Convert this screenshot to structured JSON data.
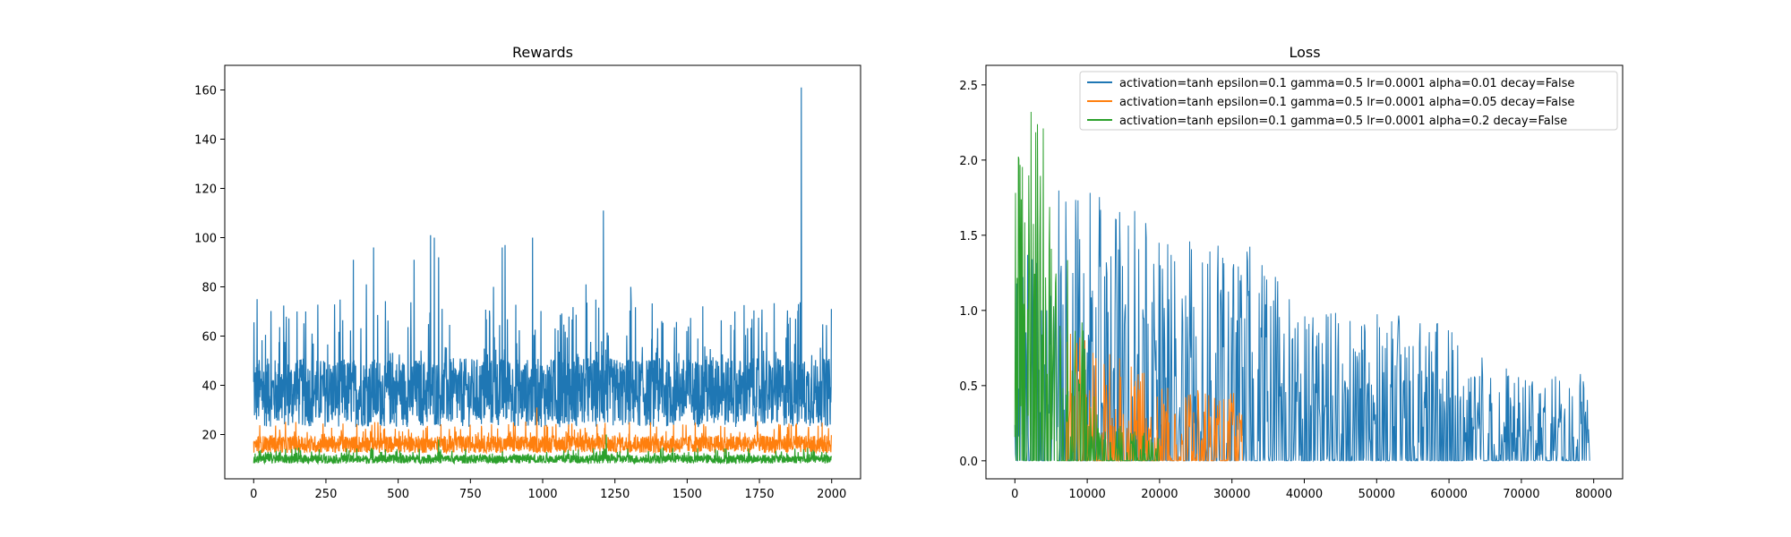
{
  "chart_data": [
    {
      "type": "line",
      "title": "Rewards",
      "xlabel": "",
      "ylabel": "",
      "xlim": [
        -100,
        2100
      ],
      "ylim": [
        2,
        170
      ],
      "xticks": [
        0,
        250,
        500,
        750,
        1000,
        1250,
        1500,
        1750,
        2000
      ],
      "yticks": [
        20,
        40,
        60,
        80,
        100,
        120,
        140,
        160
      ],
      "grid": false,
      "n_points": 2000,
      "series": [
        {
          "color": "#1f77b4",
          "baseline_range": [
            22,
            62
          ],
          "typical_mean": 37,
          "spikes": [
            {
              "x": 12,
              "y": 75
            },
            {
              "x": 150,
              "y": 70
            },
            {
              "x": 180,
              "y": 70
            },
            {
              "x": 345,
              "y": 91
            },
            {
              "x": 390,
              "y": 81
            },
            {
              "x": 415,
              "y": 96
            },
            {
              "x": 555,
              "y": 91
            },
            {
              "x": 612,
              "y": 101
            },
            {
              "x": 625,
              "y": 100
            },
            {
              "x": 640,
              "y": 92
            },
            {
              "x": 830,
              "y": 80
            },
            {
              "x": 860,
              "y": 96
            },
            {
              "x": 870,
              "y": 97
            },
            {
              "x": 965,
              "y": 100
            },
            {
              "x": 1150,
              "y": 81
            },
            {
              "x": 1210,
              "y": 111
            },
            {
              "x": 1305,
              "y": 80
            },
            {
              "x": 1665,
              "y": 70
            },
            {
              "x": 1850,
              "y": 65
            },
            {
              "x": 1875,
              "y": 67
            },
            {
              "x": 1885,
              "y": 73
            },
            {
              "x": 1895,
              "y": 161
            }
          ]
        },
        {
          "color": "#ff7f0e",
          "baseline_range": [
            12,
            22
          ],
          "typical_mean": 16,
          "spikes": [
            {
              "x": 980,
              "y": 31
            },
            {
              "x": 430,
              "y": 25
            },
            {
              "x": 1300,
              "y": 25
            },
            {
              "x": 1860,
              "y": 24
            }
          ]
        },
        {
          "color": "#2ca02c",
          "baseline_range": [
            8,
            13
          ],
          "typical_mean": 10,
          "spikes": [
            {
              "x": 1220,
              "y": 20
            },
            {
              "x": 640,
              "y": 18
            }
          ]
        }
      ]
    },
    {
      "type": "line",
      "title": "Loss",
      "xlabel": "",
      "ylabel": "",
      "xlim": [
        -4000,
        84000
      ],
      "ylim": [
        -0.12,
        2.63
      ],
      "xticks": [
        0,
        10000,
        20000,
        30000,
        40000,
        50000,
        60000,
        70000,
        80000
      ],
      "yticks": [
        0.0,
        0.5,
        1.0,
        1.5,
        2.0,
        2.5
      ],
      "grid": false,
      "legend": {
        "position": "upper right",
        "entries": [
          "activation=tanh epsilon=0.1 gamma=0.5 lr=0.0001 alpha=0.01 decay=False",
          "activation=tanh epsilon=0.1 gamma=0.5 lr=0.0001 alpha=0.05 decay=False",
          "activation=tanh epsilon=0.1 gamma=0.5 lr=0.0001 alpha=0.2 decay=False"
        ]
      },
      "series": [
        {
          "color": "#1f77b4",
          "x_end": 79500,
          "envelope": [
            {
              "x": 0,
              "y": 1.5
            },
            {
              "x": 5000,
              "y": 1.85
            },
            {
              "x": 10000,
              "y": 1.85
            },
            {
              "x": 20000,
              "y": 1.6
            },
            {
              "x": 30000,
              "y": 1.45
            },
            {
              "x": 32000,
              "y": 1.45
            },
            {
              "x": 40000,
              "y": 1.05
            },
            {
              "x": 50000,
              "y": 1.0
            },
            {
              "x": 60000,
              "y": 0.9
            },
            {
              "x": 70000,
              "y": 0.55
            },
            {
              "x": 79500,
              "y": 0.6
            }
          ]
        },
        {
          "color": "#ff7f0e",
          "x_end": 31500,
          "envelope": [
            {
              "x": 7000,
              "y": 0.9
            },
            {
              "x": 10000,
              "y": 0.8
            },
            {
              "x": 15000,
              "y": 0.7
            },
            {
              "x": 20000,
              "y": 0.5
            },
            {
              "x": 25000,
              "y": 0.47
            },
            {
              "x": 31500,
              "y": 0.45
            }
          ]
        },
        {
          "color": "#2ca02c",
          "x_end": 20000,
          "envelope": [
            {
              "x": 0,
              "y": 1.9
            },
            {
              "x": 2000,
              "y": 2.5
            },
            {
              "x": 4000,
              "y": 2.4
            },
            {
              "x": 5000,
              "y": 2.0
            },
            {
              "x": 7000,
              "y": 1.5
            },
            {
              "x": 9000,
              "y": 1.0
            },
            {
              "x": 10000,
              "y": 0.8
            },
            {
              "x": 12000,
              "y": 0.25
            },
            {
              "x": 20000,
              "y": 0.2
            }
          ]
        }
      ]
    }
  ]
}
